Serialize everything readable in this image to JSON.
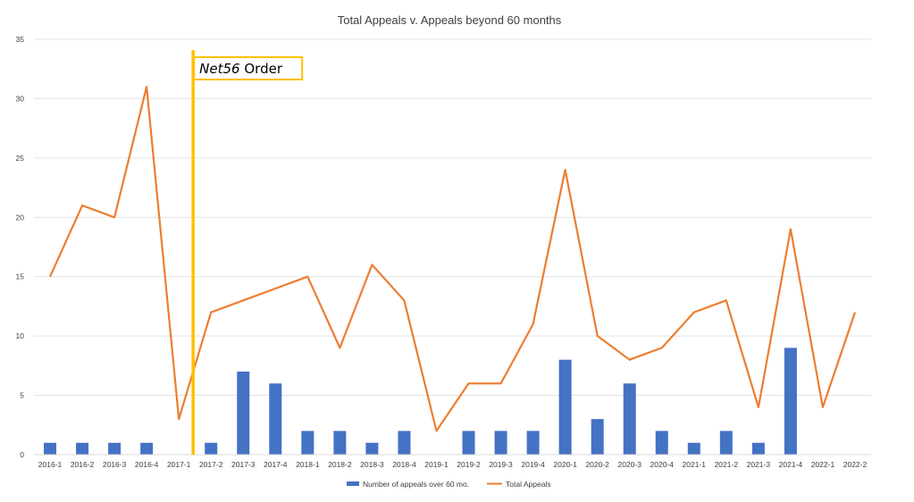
{
  "chart_data": {
    "type": "bar",
    "title": "Total Appeals v. Appeals beyond 60 months",
    "xlabel": "",
    "ylabel": "",
    "ylim": [
      0,
      35
    ],
    "yticks": [
      0,
      5,
      10,
      15,
      20,
      25,
      30,
      35
    ],
    "grid": true,
    "legend_position": "bottom",
    "categories": [
      "2016-1",
      "2016-2",
      "2016-3",
      "2016-4",
      "2017-1",
      "2017-2",
      "2017-3",
      "2017-4",
      "2018-1",
      "2018-2",
      "2018-3",
      "2018-4",
      "2019-1",
      "2019-2",
      "2019-3",
      "2019-4",
      "2020-1",
      "2020-2",
      "2020-3",
      "2020-4",
      "2021-1",
      "2021-2",
      "2021-3",
      "2021-4",
      "2022-1",
      "2022-2"
    ],
    "series": [
      {
        "name": "Number of appeals over 60 mo.",
        "type": "bar",
        "color": "#4472C4",
        "values": [
          1,
          1,
          1,
          1,
          null,
          1,
          7,
          6,
          2,
          2,
          1,
          2,
          null,
          2,
          2,
          2,
          8,
          3,
          6,
          2,
          1,
          2,
          1,
          9,
          null,
          null
        ]
      },
      {
        "name": "Total Appeals",
        "type": "line",
        "color": "#ED7D31",
        "values": [
          15,
          21,
          20,
          31,
          3,
          12,
          13,
          14,
          15,
          9,
          16,
          13,
          2,
          6,
          6,
          11,
          24,
          10,
          8,
          9,
          12,
          13,
          4,
          19,
          4,
          12
        ]
      }
    ],
    "annotations": [
      {
        "text_italic": "Net56",
        "text_rest": " Order",
        "at_category": "2017-1",
        "line_color": "#FFC000"
      }
    ]
  }
}
